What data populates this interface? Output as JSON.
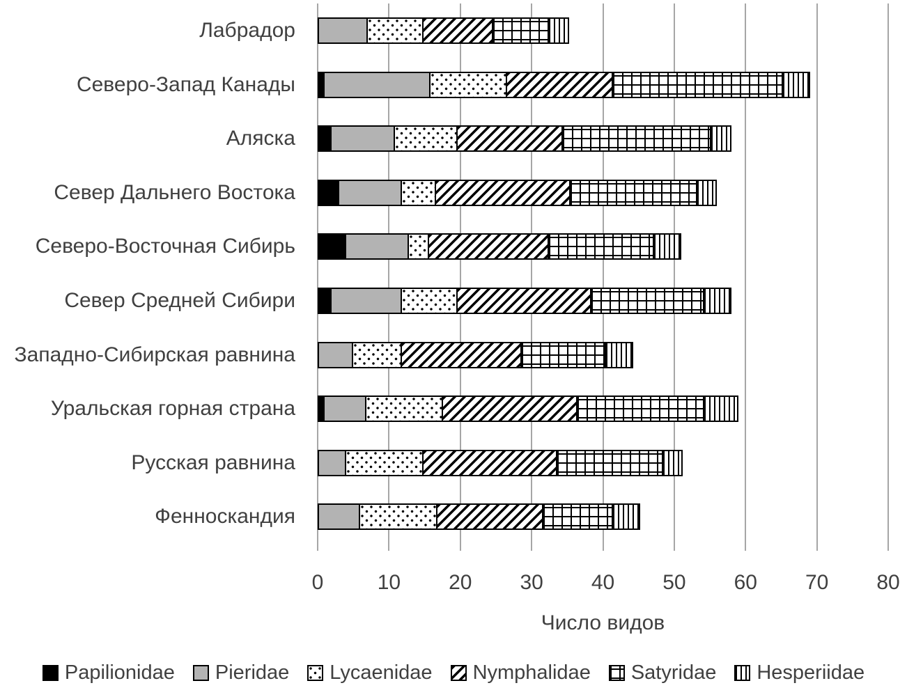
{
  "chart_data": {
    "type": "bar",
    "orientation": "horizontal",
    "stacked": true,
    "title": "",
    "xlabel": "Число видов",
    "ylabel": "",
    "xlim": [
      0,
      80
    ],
    "xticks": [
      0,
      10,
      20,
      30,
      40,
      50,
      60,
      70,
      80
    ],
    "grid": true,
    "legend_position": "bottom",
    "categories": [
      "Лабрадор",
      "Северо-Запад Канады",
      "Аляска",
      "Север Дальнего Востока",
      "Северо-Восточная Сибирь",
      "Север Средней Сибири",
      "Западно-Сибирская равнина",
      "Уральская горная страна",
      "Русская равнина",
      "Фенноскандия"
    ],
    "series": [
      {
        "key": "papilionidae",
        "name": "Papilionidae",
        "pattern": "solid-black",
        "color": "#000000",
        "values": [
          0,
          1,
          2,
          3,
          4,
          2,
          0,
          1,
          0,
          0
        ]
      },
      {
        "key": "pieridae",
        "name": "Pieridae",
        "pattern": "solid-gray",
        "color": "#b3b3b3",
        "values": [
          7,
          15,
          9,
          9,
          9,
          10,
          5,
          6,
          4,
          6
        ]
      },
      {
        "key": "lycaenidae",
        "name": "Lycaenidae",
        "pattern": "dots",
        "color": "#ffffff",
        "values": [
          8,
          11,
          9,
          5,
          3,
          8,
          7,
          11,
          11,
          11
        ]
      },
      {
        "key": "nymphalidae",
        "name": "Nymphalidae",
        "pattern": "diagonal-hatch",
        "color": "#ffffff",
        "values": [
          10,
          15,
          15,
          19,
          17,
          19,
          17,
          19,
          19,
          15
        ]
      },
      {
        "key": "satyridae",
        "name": "Satyridae",
        "pattern": "grid",
        "color": "#ffffff",
        "values": [
          8,
          24,
          21,
          18,
          15,
          16,
          12,
          18,
          15,
          10
        ]
      },
      {
        "key": "hesperiidae",
        "name": "Hesperiidae",
        "pattern": "vertical-lines",
        "color": "#ffffff",
        "values": [
          3,
          4,
          3,
          3,
          4,
          4,
          4,
          5,
          3,
          4
        ]
      }
    ],
    "totals": [
      36,
      70,
      59,
      57,
      52,
      59,
      45,
      60,
      52,
      46
    ]
  },
  "colors": {
    "axis_text": "#404040",
    "gridline": "#a6a6a6",
    "segment_outline": "#000000",
    "background": "#ffffff"
  }
}
